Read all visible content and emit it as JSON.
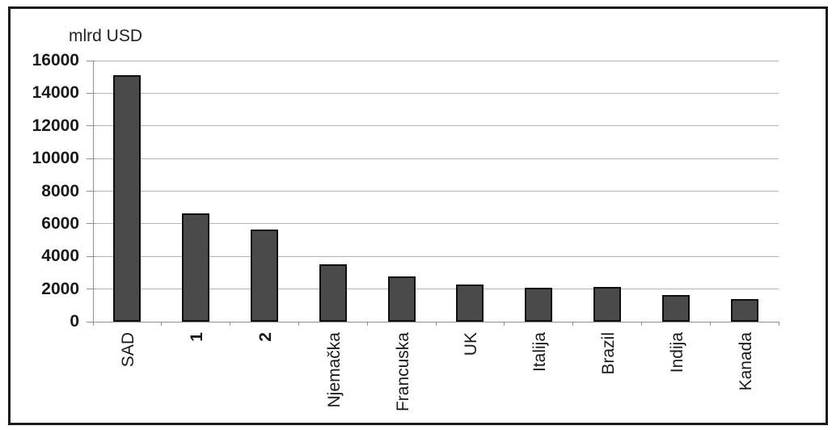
{
  "figure": {
    "background": "#ffffff",
    "frame_color": "#1a1a1a"
  },
  "chart_data": {
    "type": "bar",
    "title": "",
    "ylabel": "mlrd USD",
    "xlabel": "",
    "categories": [
      "SAD",
      "1",
      "2",
      "Njemačka",
      "Francuska",
      "UK",
      "Italija",
      "Brazil",
      "Indija",
      "Kanada"
    ],
    "values": [
      15100,
      6650,
      5650,
      3500,
      2750,
      2300,
      2100,
      2150,
      1650,
      1400
    ],
    "bold_categories": [
      "1",
      "2"
    ],
    "ylim": [
      0,
      16000
    ],
    "ytick_step": 2000,
    "yticks": [
      0,
      2000,
      4000,
      6000,
      8000,
      10000,
      12000,
      14000,
      16000
    ],
    "grid": true,
    "legend": "none",
    "colors": {
      "bar_fill": "#4a4a4a",
      "bar_border": "#0f0f0f",
      "gridline": "#b4b4b4",
      "axis": "#909090",
      "text": "#1a1a1a"
    }
  }
}
